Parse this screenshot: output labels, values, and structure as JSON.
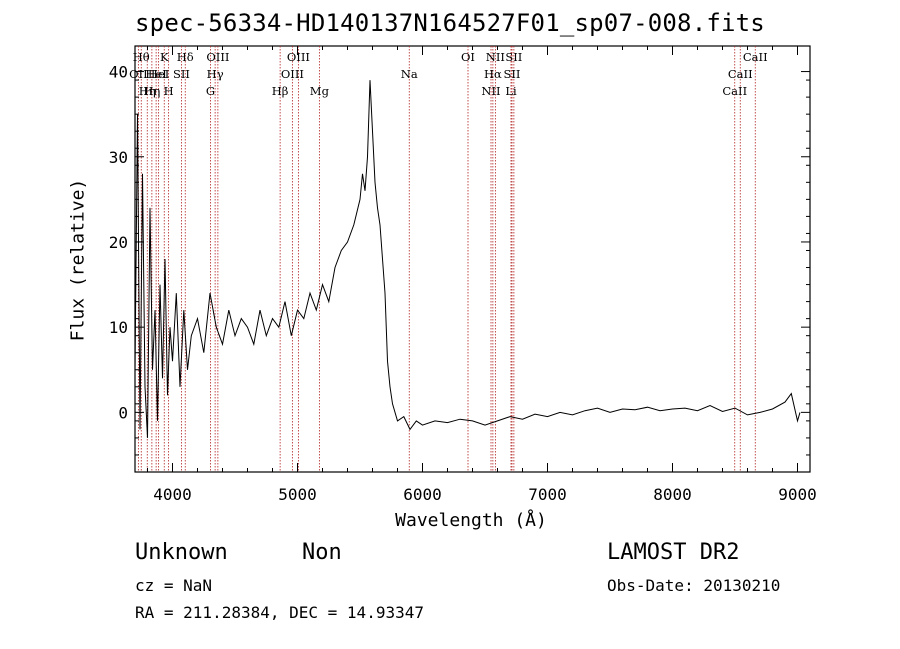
{
  "chart_data": {
    "type": "line",
    "title": "spec-56334-HD140137N164527F01_sp07-008.fits",
    "xlabel": "Wavelength (Å)",
    "ylabel": "Flux (relative)",
    "xlim": [
      3700,
      9100
    ],
    "ylim": [
      -7,
      43
    ],
    "xticks": [
      4000,
      5000,
      6000,
      7000,
      8000,
      9000
    ],
    "yticks": [
      0,
      10,
      20,
      30,
      40
    ],
    "grid": false,
    "line_color": "#000000",
    "marker_color": "#b22222",
    "spectrum": {
      "x": [
        3700,
        3720,
        3740,
        3760,
        3780,
        3800,
        3820,
        3840,
        3860,
        3880,
        3900,
        3920,
        3940,
        3960,
        3980,
        4000,
        4030,
        4060,
        4090,
        4120,
        4150,
        4200,
        4250,
        4300,
        4350,
        4400,
        4450,
        4500,
        4550,
        4600,
        4650,
        4700,
        4750,
        4800,
        4850,
        4900,
        4950,
        5000,
        5050,
        5100,
        5150,
        5200,
        5250,
        5300,
        5350,
        5400,
        5450,
        5500,
        5520,
        5540,
        5560,
        5580,
        5600,
        5620,
        5640,
        5660,
        5680,
        5700,
        5720,
        5740,
        5760,
        5800,
        5850,
        5900,
        5950,
        6000,
        6100,
        6200,
        6300,
        6400,
        6500,
        6600,
        6700,
        6800,
        6900,
        7000,
        7100,
        7200,
        7300,
        7400,
        7500,
        7600,
        7700,
        7800,
        7900,
        8000,
        8100,
        8200,
        8300,
        8400,
        8500,
        8600,
        8700,
        8800,
        8900,
        8950,
        9000,
        9020
      ],
      "y": [
        5,
        35,
        -2,
        28,
        3,
        -3,
        24,
        5,
        12,
        -1,
        15,
        4,
        18,
        2,
        10,
        6,
        14,
        3,
        12,
        5,
        9,
        11,
        7,
        14,
        10,
        8,
        12,
        9,
        11,
        10,
        8,
        12,
        9,
        11,
        10,
        13,
        9,
        12,
        11,
        14,
        12,
        15,
        13,
        17,
        19,
        20,
        22,
        25,
        28,
        26,
        30,
        39,
        33,
        27,
        24,
        22,
        18,
        14,
        6,
        3,
        1,
        -1,
        -0.5,
        -2,
        -1,
        -1.5,
        -1,
        -1.2,
        -0.8,
        -1,
        -1.5,
        -1,
        -0.5,
        -0.8,
        -0.2,
        -0.5,
        0,
        -0.3,
        0.2,
        0.5,
        0,
        0.4,
        0.3,
        0.6,
        0.2,
        0.4,
        0.5,
        0.2,
        0.8,
        0.1,
        0.5,
        -0.3,
        0,
        0.4,
        1.2,
        2.2,
        -1,
        0
      ]
    },
    "lines": [
      {
        "wave": 3727,
        "label": "OII",
        "row": 1
      },
      {
        "wave": 3750,
        "label": "Hθ",
        "row": 0
      },
      {
        "wave": 3798,
        "label": "Hη",
        "row": 2
      },
      {
        "wave": 3835,
        "label": "Hη",
        "row": 2
      },
      {
        "wave": 3869,
        "label": "HeI",
        "row": 1
      },
      {
        "wave": 3889,
        "label": "HeI",
        "row": 1
      },
      {
        "wave": 3934,
        "label": "K",
        "row": 0
      },
      {
        "wave": 3969,
        "label": "H",
        "row": 2
      },
      {
        "wave": 4072,
        "label": "SII",
        "row": 1
      },
      {
        "wave": 4102,
        "label": "Hδ",
        "row": 0
      },
      {
        "wave": 4304,
        "label": "G",
        "row": 2
      },
      {
        "wave": 4341,
        "label": "Hγ",
        "row": 1
      },
      {
        "wave": 4363,
        "label": "OIII",
        "row": 0
      },
      {
        "wave": 4861,
        "label": "Hβ",
        "row": 2
      },
      {
        "wave": 4959,
        "label": "OIII",
        "row": 1
      },
      {
        "wave": 5007,
        "label": "OIII",
        "row": 0
      },
      {
        "wave": 5175,
        "label": "Mg",
        "row": 2
      },
      {
        "wave": 5894,
        "label": "Na",
        "row": 1
      },
      {
        "wave": 6364,
        "label": "OI",
        "row": 0
      },
      {
        "wave": 6548,
        "label": "NII",
        "row": 2
      },
      {
        "wave": 6563,
        "label": "Hα",
        "row": 1
      },
      {
        "wave": 6583,
        "label": "NII",
        "row": 0
      },
      {
        "wave": 6708,
        "label": "Li",
        "row": 2
      },
      {
        "wave": 6716,
        "label": "SII",
        "row": 1
      },
      {
        "wave": 6731,
        "label": "SII",
        "row": 0
      },
      {
        "wave": 8498,
        "label": "CaII",
        "row": 2
      },
      {
        "wave": 8542,
        "label": "CaII",
        "row": 1
      },
      {
        "wave": 8662,
        "label": "CaII",
        "row": 0
      }
    ]
  },
  "info": {
    "class": "Unknown",
    "subclass": "Non",
    "cz": "cz = NaN",
    "coords": "RA = 211.28384, DEC =  14.93347",
    "survey": "LAMOST DR2",
    "obs_date": "Obs-Date: 20130210"
  }
}
